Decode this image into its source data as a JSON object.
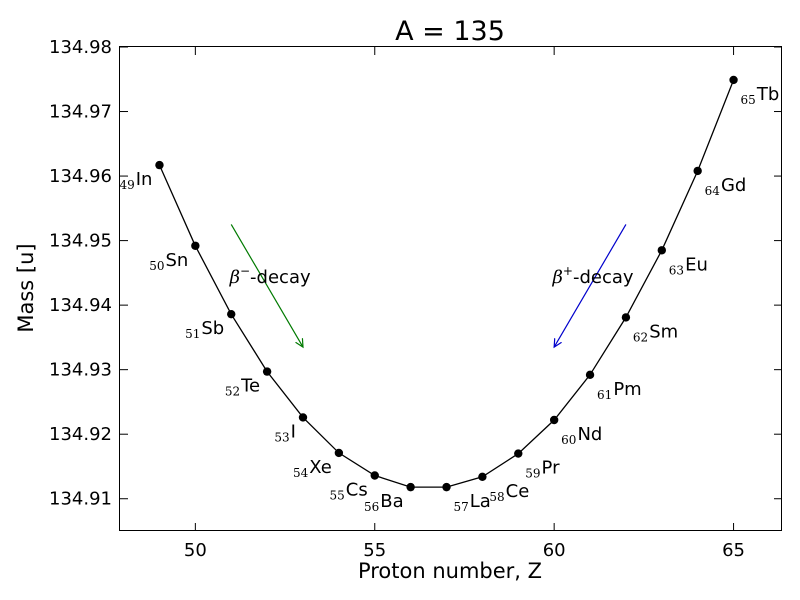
{
  "chart_data": {
    "type": "line",
    "title": "A = 135",
    "xlabel": "Proton number, Z",
    "ylabel": "Mass [u]",
    "xlim": [
      47.9,
      66.35
    ],
    "ylim": [
      134.905,
      134.98
    ],
    "xticks": [
      50,
      55,
      60,
      65
    ],
    "yticks": [
      134.91,
      134.92,
      134.93,
      134.94,
      134.95,
      134.96,
      134.97,
      134.98
    ],
    "grid": false,
    "series": [
      {
        "x": [
          49,
          50,
          51,
          52,
          53,
          54,
          55,
          56,
          57,
          58,
          59,
          60,
          61,
          62,
          63,
          64,
          65
        ],
        "y": [
          134.9617,
          134.9492,
          134.9386,
          134.9297,
          134.9226,
          134.9171,
          134.9136,
          134.9118,
          134.9118,
          134.9134,
          134.917,
          134.9222,
          134.9292,
          134.9381,
          134.9485,
          134.9608,
          134.9749
        ],
        "color": "#000000",
        "marker": "circle",
        "point_labels": [
          {
            "z": "49",
            "el": "In"
          },
          {
            "z": "50",
            "el": "Sn"
          },
          {
            "z": "51",
            "el": "Sb"
          },
          {
            "z": "52",
            "el": "Te"
          },
          {
            "z": "53",
            "el": "I"
          },
          {
            "z": "54",
            "el": "Xe"
          },
          {
            "z": "55",
            "el": "Cs"
          },
          {
            "z": "56",
            "el": "Ba"
          },
          {
            "z": "57",
            "el": "La"
          },
          {
            "z": "58",
            "el": "Ce"
          },
          {
            "z": "59",
            "el": "Pr"
          },
          {
            "z": "60",
            "el": "Nd"
          },
          {
            "z": "61",
            "el": "Pm"
          },
          {
            "z": "62",
            "el": "Sm"
          },
          {
            "z": "63",
            "el": "Eu"
          },
          {
            "z": "64",
            "el": "Gd"
          },
          {
            "z": "65",
            "el": "Tb"
          }
        ]
      }
    ],
    "annotations": [
      {
        "text_symbol": "β",
        "text_sup": "−",
        "text_rest": "-decay",
        "color": "#007a00",
        "arrow_from": [
          51,
          134.9525
        ],
        "arrow_to": [
          53,
          134.9335
        ]
      },
      {
        "text_symbol": "β",
        "text_sup": "+",
        "text_rest": "-decay",
        "color": "#0000cc",
        "arrow_from": [
          62,
          134.9525
        ],
        "arrow_to": [
          60,
          134.9335
        ]
      }
    ]
  }
}
